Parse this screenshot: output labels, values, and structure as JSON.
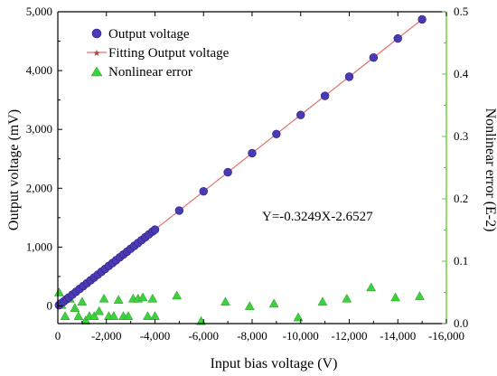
{
  "chart_data": {
    "type": "scatter",
    "xlabel": "Input bias voltage (V)",
    "ylabel": "Output voltage (mV)",
    "y2label": "Nonlinear error (E-2)",
    "xlim": [
      0,
      -16000
    ],
    "ylim": [
      -300,
      5000
    ],
    "y2lim": [
      0,
      0.5
    ],
    "x_ticks": [
      0,
      -2000,
      -4000,
      -6000,
      -8000,
      -10000,
      -12000,
      -14000,
      -16000
    ],
    "x_tick_labels": [
      "0",
      "-2,000",
      "-4,000",
      "-6,000",
      "-8,000",
      "-10,000",
      "-12,000",
      "-14,000",
      "-16,000"
    ],
    "y_ticks": [
      0,
      1000,
      2000,
      3000,
      4000,
      5000
    ],
    "y_tick_labels": [
      "0",
      "1,000",
      "2,000",
      "3,000",
      "4,000",
      "5,000"
    ],
    "y2_ticks": [
      0,
      0.1,
      0.2,
      0.3,
      0.4,
      0.5
    ],
    "y2_tick_labels": [
      "0.0",
      "0.1",
      "0.2",
      "0.3",
      "0.4",
      "0.5"
    ],
    "annotation": "Y=-0.3249X-2.6527",
    "legend_position": "top-left",
    "colors": {
      "output": "#4a3bb5",
      "fit": "#e0736e",
      "nonlinear": "#3dd23d",
      "right_axis": "#66cc33"
    },
    "series": [
      {
        "name": "Output voltage",
        "marker": "circle",
        "x": [
          -50,
          -150,
          -250,
          -350,
          -450,
          -600,
          -750,
          -900,
          -1050,
          -1200,
          -1350,
          -1500,
          -1650,
          -1800,
          -1950,
          -2100,
          -2250,
          -2400,
          -2550,
          -2700,
          -2850,
          -3000,
          -3150,
          -3300,
          -3450,
          -3600,
          -3750,
          -3900,
          -4000,
          -5000,
          -6000,
          -7000,
          -8000,
          -9000,
          -10000,
          -11000,
          -12000,
          -13000,
          -14000,
          -15000
        ],
        "y": [
          13,
          46,
          78,
          111,
          143,
          192,
          241,
          290,
          339,
          387,
          436,
          485,
          533,
          582,
          631,
          680,
          728,
          777,
          826,
          875,
          923,
          972,
          1021,
          1069,
          1118,
          1167,
          1216,
          1264,
          1297,
          1622,
          1947,
          2272,
          2597,
          2922,
          3246,
          3571,
          3896,
          4221,
          4546,
          4871
        ]
      },
      {
        "name": "Fitting Output voltage",
        "line_x": [
          0,
          -15000
        ],
        "line_y": [
          -3,
          4871
        ]
      },
      {
        "name": "Nonlinear error",
        "marker": "triangle",
        "x": [
          -50,
          -150,
          -300,
          -500,
          -700,
          -850,
          -1000,
          -1150,
          -1300,
          -1500,
          -1700,
          -1900,
          -2100,
          -2300,
          -2500,
          -2700,
          -2900,
          -3100,
          -3300,
          -3500,
          -3700,
          -3900,
          -4000,
          -4900,
          -5900,
          -6900,
          -7900,
          -8900,
          -9900,
          -10900,
          -11900,
          -12900,
          -13900,
          -14900
        ],
        "y": [
          0.05,
          0.03,
          0.012,
          0.04,
          0.025,
          0.012,
          0.035,
          0.005,
          0.012,
          0.012,
          0.02,
          0.04,
          0.012,
          0.012,
          0.038,
          0.012,
          0.012,
          0.04,
          0.04,
          0.042,
          0.012,
          0.04,
          0.012,
          0.045,
          0.004,
          0.035,
          0.028,
          0.032,
          0.01,
          0.035,
          0.04,
          0.058,
          0.042,
          0.044
        ]
      }
    ]
  }
}
